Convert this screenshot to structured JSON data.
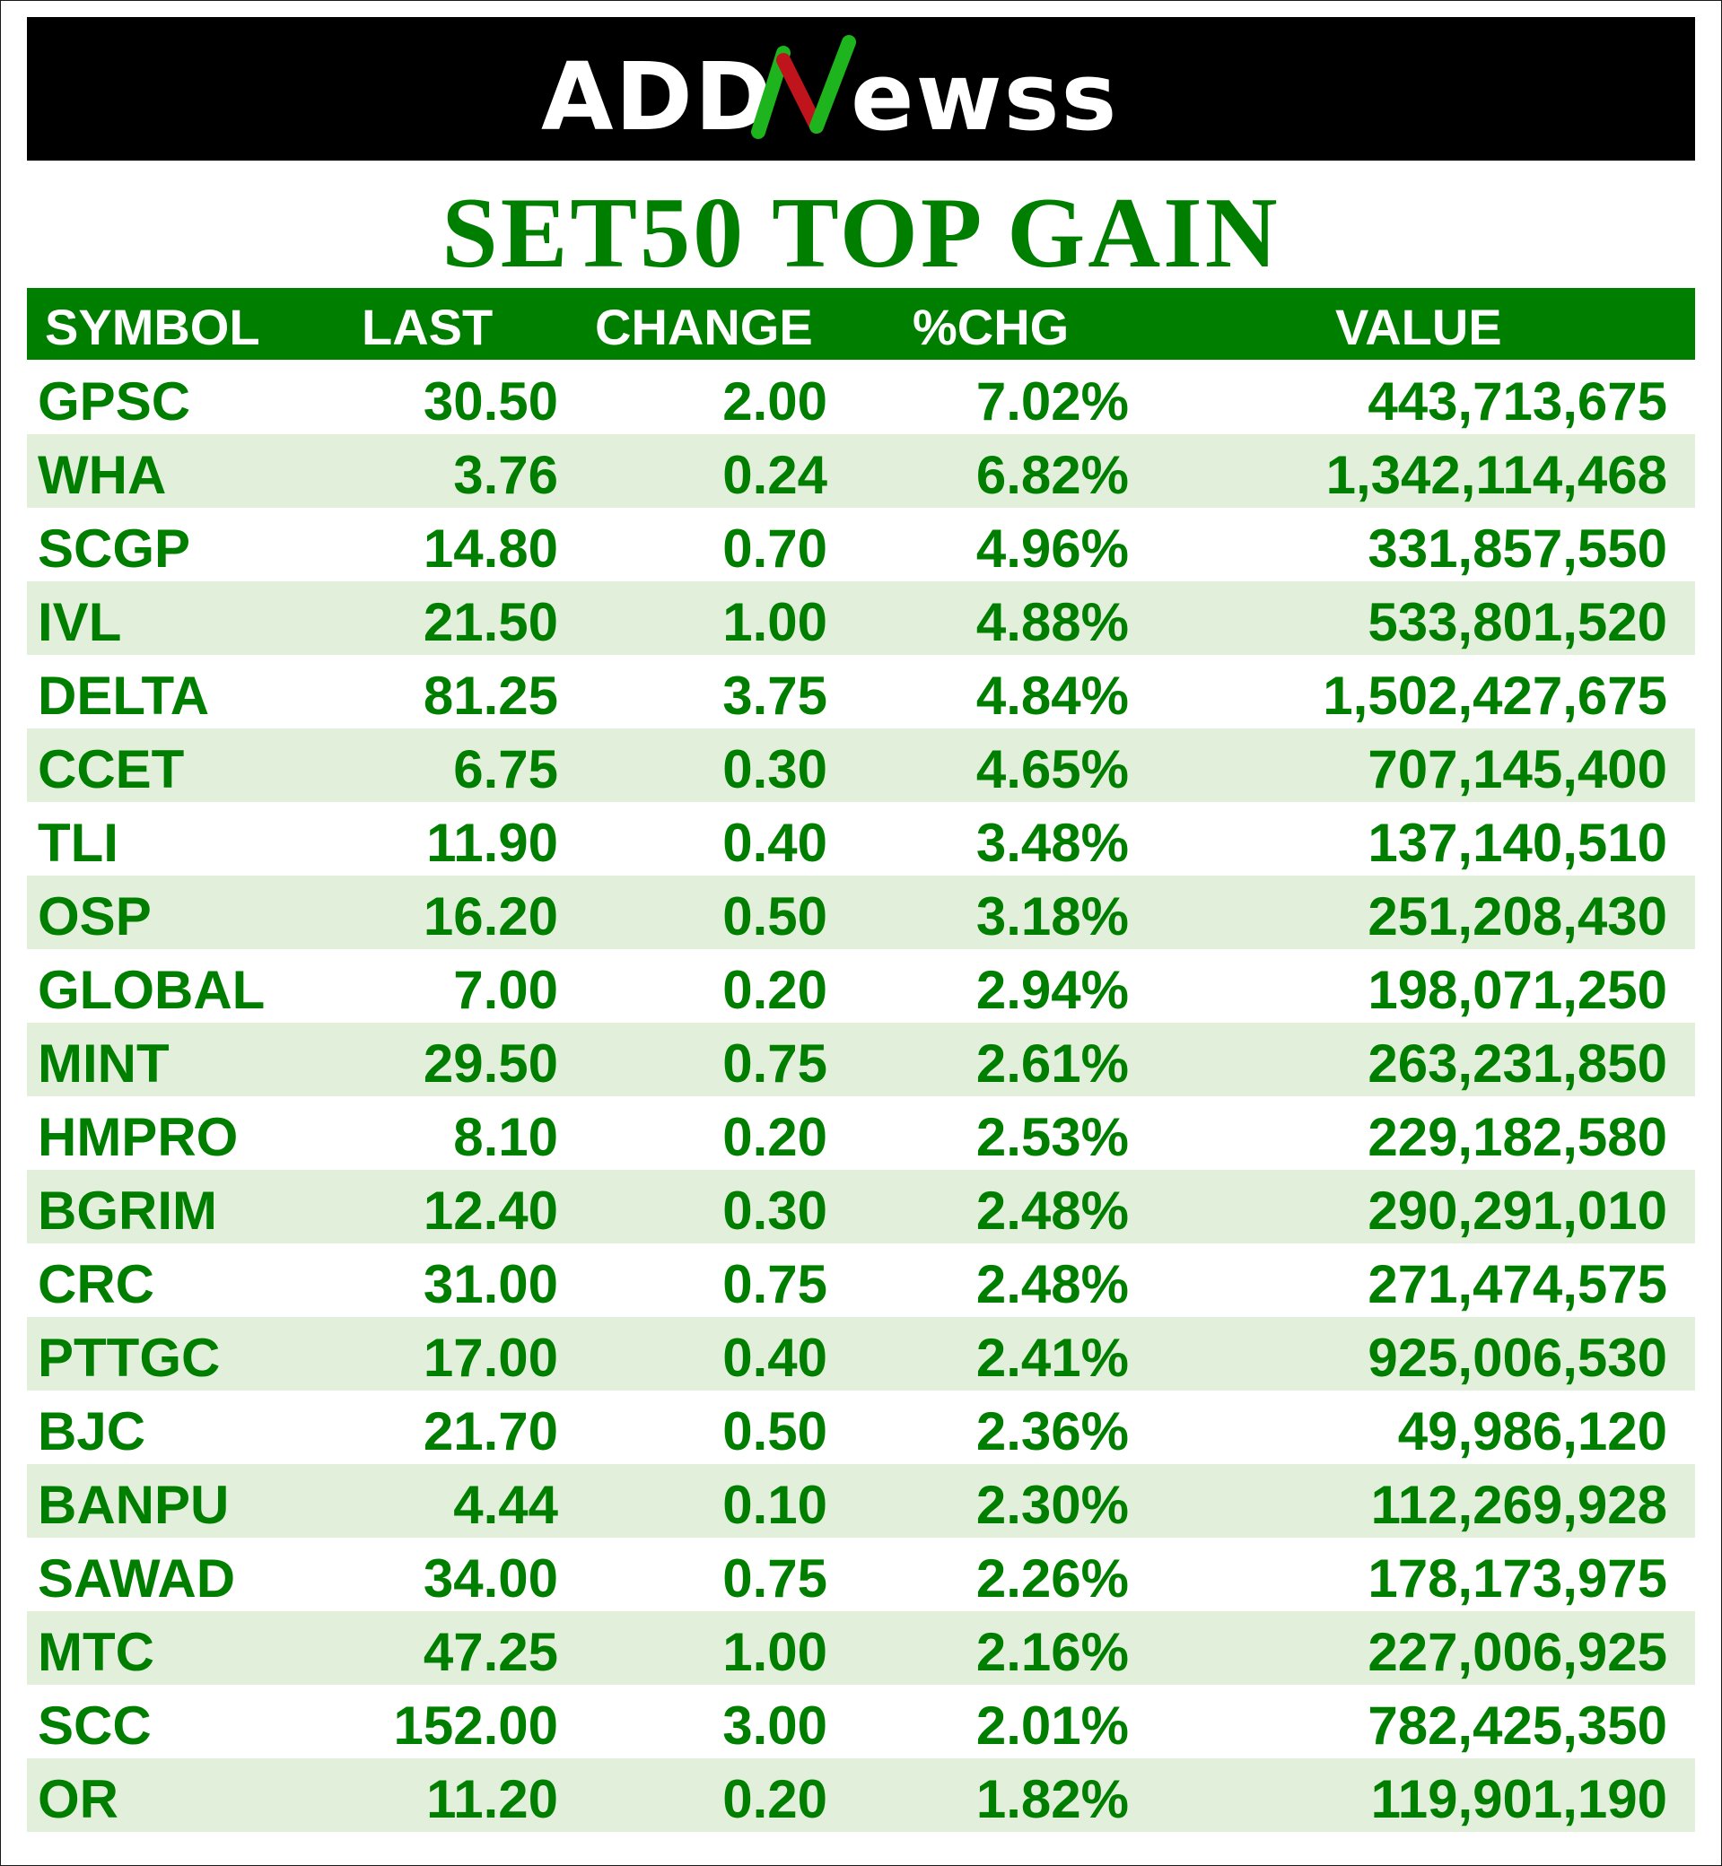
{
  "brand": {
    "logo_text": "ADDNewss",
    "logo_part_1": "ADD",
    "logo_part_2": "ewss",
    "logo_white": "#ffffff",
    "logo_green": "#1db41d",
    "logo_red": "#c0141c",
    "bar_color": "#000000"
  },
  "title": "SET50 TOP GAIN",
  "colors": {
    "accent_green": "#007e00",
    "row_shade": "#e2efda",
    "row_plain": "#ffffff",
    "header_text": "#ffffff"
  },
  "table": {
    "headers": {
      "symbol": "SYMBOL",
      "last": "LAST",
      "change": "CHANGE",
      "pct_change": "%CHG",
      "value": "VALUE"
    },
    "rows": [
      {
        "symbol": "GPSC",
        "last": "30.50",
        "change": "2.00",
        "pct": "7.02%",
        "value": "443,713,675"
      },
      {
        "symbol": "WHA",
        "last": "3.76",
        "change": "0.24",
        "pct": "6.82%",
        "value": "1,342,114,468"
      },
      {
        "symbol": "SCGP",
        "last": "14.80",
        "change": "0.70",
        "pct": "4.96%",
        "value": "331,857,550"
      },
      {
        "symbol": "IVL",
        "last": "21.50",
        "change": "1.00",
        "pct": "4.88%",
        "value": "533,801,520"
      },
      {
        "symbol": "DELTA",
        "last": "81.25",
        "change": "3.75",
        "pct": "4.84%",
        "value": "1,502,427,675"
      },
      {
        "symbol": "CCET",
        "last": "6.75",
        "change": "0.30",
        "pct": "4.65%",
        "value": "707,145,400"
      },
      {
        "symbol": "TLI",
        "last": "11.90",
        "change": "0.40",
        "pct": "3.48%",
        "value": "137,140,510"
      },
      {
        "symbol": "OSP",
        "last": "16.20",
        "change": "0.50",
        "pct": "3.18%",
        "value": "251,208,430"
      },
      {
        "symbol": "GLOBAL",
        "last": "7.00",
        "change": "0.20",
        "pct": "2.94%",
        "value": "198,071,250"
      },
      {
        "symbol": "MINT",
        "last": "29.50",
        "change": "0.75",
        "pct": "2.61%",
        "value": "263,231,850"
      },
      {
        "symbol": "HMPRO",
        "last": "8.10",
        "change": "0.20",
        "pct": "2.53%",
        "value": "229,182,580"
      },
      {
        "symbol": "BGRIM",
        "last": "12.40",
        "change": "0.30",
        "pct": "2.48%",
        "value": "290,291,010"
      },
      {
        "symbol": "CRC",
        "last": "31.00",
        "change": "0.75",
        "pct": "2.48%",
        "value": "271,474,575"
      },
      {
        "symbol": "PTTGC",
        "last": "17.00",
        "change": "0.40",
        "pct": "2.41%",
        "value": "925,006,530"
      },
      {
        "symbol": "BJC",
        "last": "21.70",
        "change": "0.50",
        "pct": "2.36%",
        "value": "49,986,120"
      },
      {
        "symbol": "BANPU",
        "last": "4.44",
        "change": "0.10",
        "pct": "2.30%",
        "value": "112,269,928"
      },
      {
        "symbol": "SAWAD",
        "last": "34.00",
        "change": "0.75",
        "pct": "2.26%",
        "value": "178,173,975"
      },
      {
        "symbol": "MTC",
        "last": "47.25",
        "change": "1.00",
        "pct": "2.16%",
        "value": "227,006,925"
      },
      {
        "symbol": "SCC",
        "last": "152.00",
        "change": "3.00",
        "pct": "2.01%",
        "value": "782,425,350"
      },
      {
        "symbol": "OR",
        "last": "11.20",
        "change": "0.20",
        "pct": "1.82%",
        "value": "119,901,190"
      }
    ]
  }
}
